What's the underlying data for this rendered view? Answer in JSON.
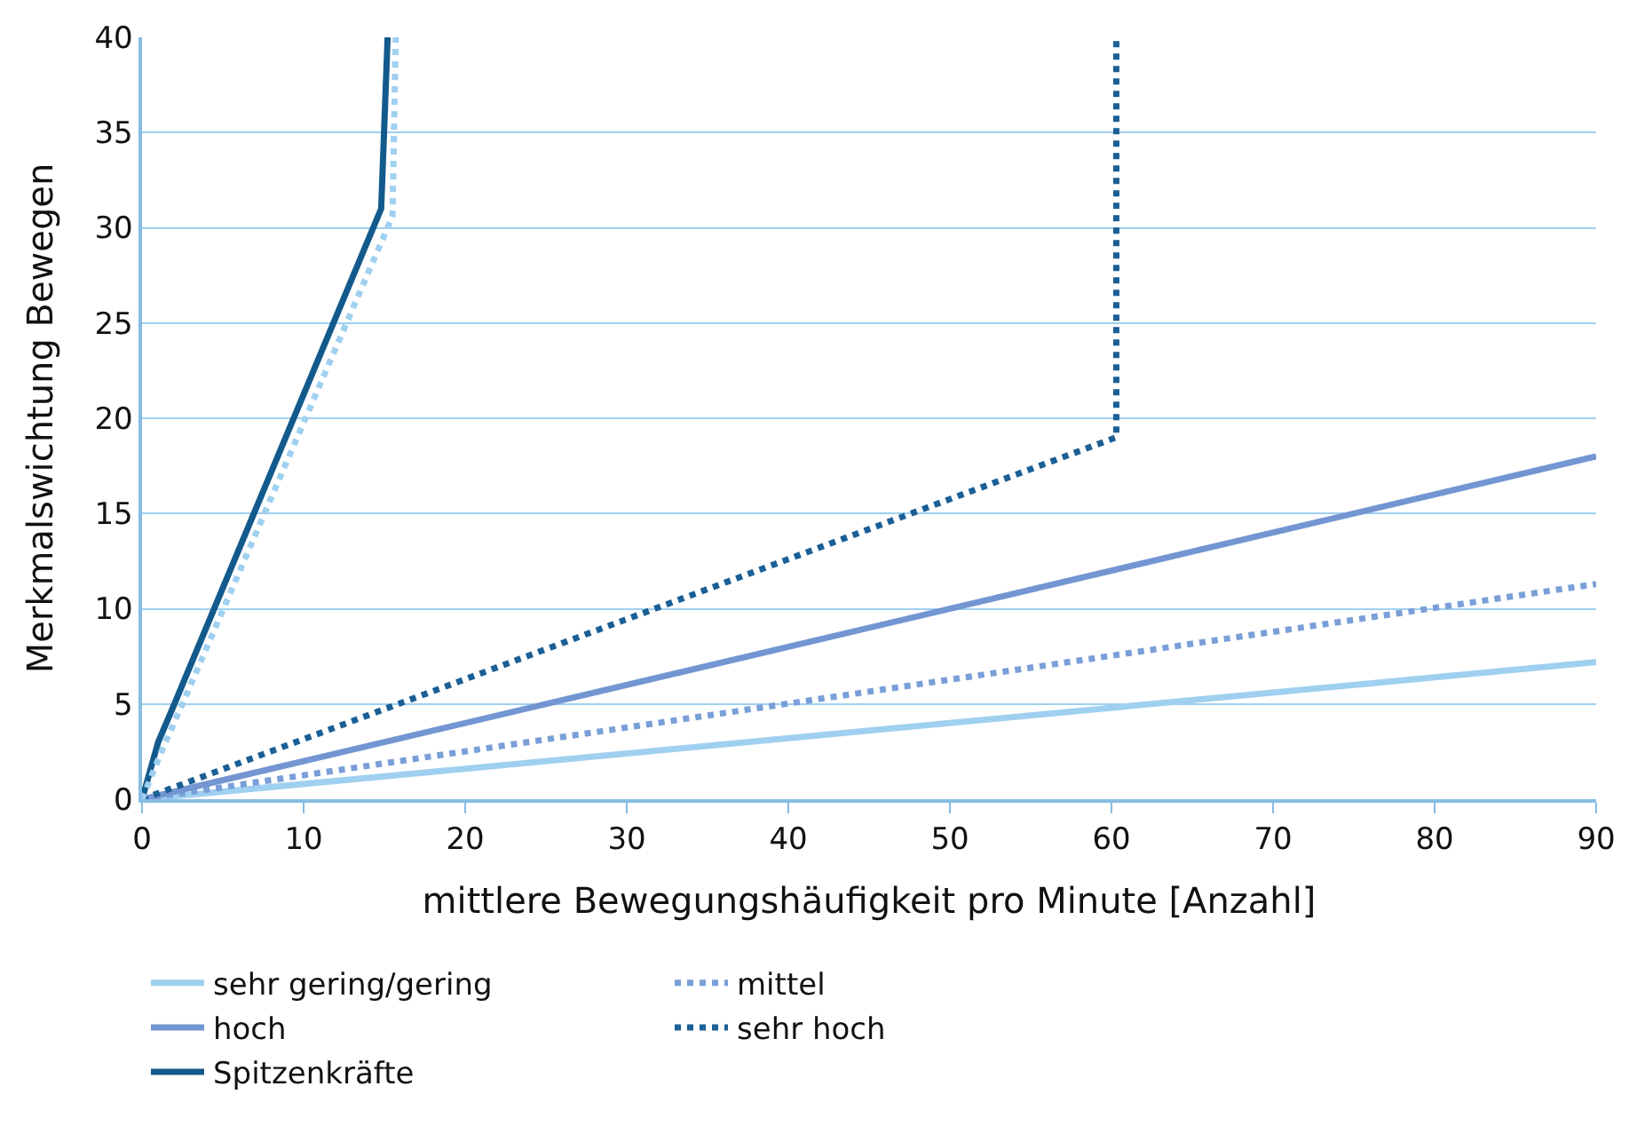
{
  "chart_data": {
    "type": "line",
    "xlabel": "mittlere Bewegungshäufigkeit pro Minute [Anzahl]",
    "ylabel": "Merkmalswichtung Bewegen",
    "xlim": [
      0,
      90
    ],
    "xticks": [
      0,
      10,
      20,
      30,
      40,
      50,
      60,
      70,
      80,
      90
    ],
    "ylim": [
      0,
      40
    ],
    "yticks": [
      0,
      5,
      10,
      15,
      20,
      25,
      30,
      35,
      40
    ],
    "grid": "y",
    "legend": "bottom",
    "marker": "none",
    "series": [
      {
        "name": "sehr gering/gering",
        "color": "#9fd0f0",
        "line_style": "solid",
        "x": [
          0,
          90
        ],
        "values": [
          0,
          7.2
        ]
      },
      {
        "name": "mittel",
        "color": "#7a9fd8",
        "line_style": "dotted",
        "x": [
          0,
          90
        ],
        "values": [
          0,
          11.3
        ]
      },
      {
        "name": "hoch",
        "color": "#7396d2",
        "line_style": "solid",
        "x": [
          0,
          90
        ],
        "values": [
          0,
          18
        ]
      },
      {
        "name": "sehr hoch",
        "color": "#1a5f96",
        "line_style": "dotted",
        "x": [
          0,
          60.3,
          60.3
        ],
        "values": [
          0,
          19,
          40
        ]
      },
      {
        "name": "Spitzenkräfte",
        "color": "#135a8c",
        "line_style": "solid",
        "x": [
          0,
          1,
          2,
          14.8,
          15.2
        ],
        "values": [
          0,
          3,
          5,
          31,
          40
        ]
      },
      {
        "color": "#9fd0f0",
        "line_style": "dotted",
        "x": [
          0,
          1.3,
          2.5,
          15.5,
          15.7
        ],
        "values": [
          0,
          2.7,
          5,
          30.6,
          40
        ]
      }
    ]
  }
}
